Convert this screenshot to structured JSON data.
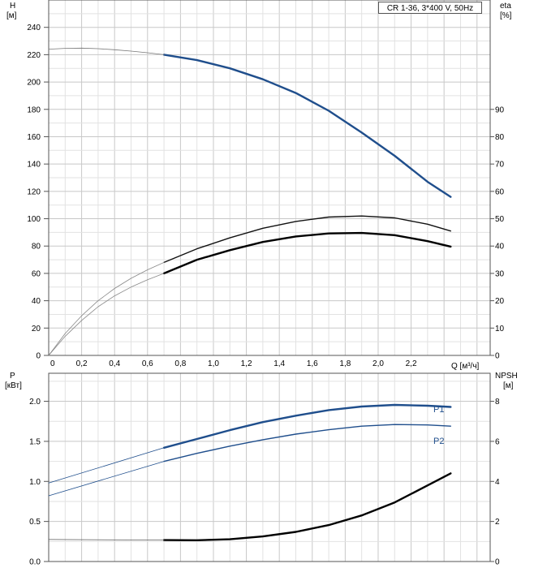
{
  "model_label": "CR 1-36, 3*400 V, 50Hz",
  "chart_data": [
    {
      "type": "line",
      "panel": "head-efficiency",
      "xlabel": "Q [м³/ч]",
      "ylabel_left": [
        "H",
        "[м]"
      ],
      "ylabel_right": [
        "eta",
        "[%]"
      ],
      "xlim": [
        0,
        2.68
      ],
      "x_ticks": [
        0,
        0.2,
        0.4,
        0.6,
        0.8,
        1.0,
        1.2,
        1.4,
        1.6,
        1.8,
        2.0,
        2.2
      ],
      "x_tick_labels": [
        "0",
        "0,2",
        "0,4",
        "0,6",
        "0,8",
        "1,0",
        "1,2",
        "1,4",
        "1,6",
        "1,8",
        "2,0",
        "2,2"
      ],
      "ylim_left": [
        0,
        260
      ],
      "y_ticks_left": [
        0,
        20,
        40,
        60,
        80,
        100,
        120,
        140,
        160,
        180,
        200,
        220,
        240
      ],
      "ylim_right": [
        0,
        130
      ],
      "y_ticks_right": [
        0,
        10,
        20,
        30,
        40,
        50,
        60,
        70,
        80,
        90
      ],
      "grid": true,
      "series": [
        {
          "id": "head",
          "color": "#1f4e8c",
          "axis": "left",
          "style": "thick",
          "x": [
            0.7,
            0.9,
            1.1,
            1.3,
            1.5,
            1.7,
            1.9,
            2.1,
            2.3,
            2.44
          ],
          "y": [
            220,
            216,
            210,
            202,
            192,
            179,
            163,
            146,
            127,
            116
          ]
        },
        {
          "id": "head-extension",
          "color": "#777777",
          "axis": "left",
          "style": "thin",
          "x": [
            0,
            0.1,
            0.2,
            0.3,
            0.4,
            0.5,
            0.6,
            0.7
          ],
          "y": [
            224,
            224.6,
            224.8,
            224.4,
            223.6,
            222.6,
            221.4,
            220
          ]
        },
        {
          "id": "eta-upper",
          "color": "#111111",
          "axis": "right",
          "style": "medium",
          "x": [
            0.7,
            0.9,
            1.1,
            1.3,
            1.5,
            1.7,
            1.9,
            2.1,
            2.3,
            2.44
          ],
          "y": [
            34,
            39,
            43,
            46.5,
            49,
            50.6,
            51,
            50.3,
            48,
            45.5
          ]
        },
        {
          "id": "eta-upper-extension",
          "color": "#888888",
          "axis": "right",
          "style": "thin",
          "x": [
            0,
            0.1,
            0.2,
            0.3,
            0.4,
            0.5,
            0.6,
            0.7
          ],
          "y": [
            0,
            8,
            14.5,
            20,
            24.5,
            28.2,
            31.3,
            34
          ]
        },
        {
          "id": "eta-lower",
          "color": "#000000",
          "axis": "right",
          "style": "thick",
          "x": [
            0.7,
            0.9,
            1.1,
            1.3,
            1.5,
            1.7,
            1.9,
            2.1,
            2.3,
            2.44
          ],
          "y": [
            30,
            35,
            38.5,
            41.5,
            43.5,
            44.6,
            44.8,
            44,
            41.8,
            39.8
          ]
        },
        {
          "id": "eta-lower-extension",
          "color": "#888888",
          "axis": "right",
          "style": "thin",
          "x": [
            0,
            0.1,
            0.2,
            0.3,
            0.4,
            0.5,
            0.6,
            0.7
          ],
          "y": [
            0,
            7,
            12.8,
            17.8,
            21.8,
            25,
            27.7,
            30
          ]
        }
      ]
    },
    {
      "type": "line",
      "panel": "power-npsh",
      "ylabel_left": [
        "P",
        "[кВт]"
      ],
      "ylabel_right": [
        "NPSH",
        "[м]"
      ],
      "xlim": [
        0,
        2.68
      ],
      "x_ticks": [
        0,
        0.2,
        0.4,
        0.6,
        0.8,
        1.0,
        1.2,
        1.4,
        1.6,
        1.8,
        2.0,
        2.2
      ],
      "ylim_left": [
        0,
        2.35
      ],
      "y_ticks_left": [
        0,
        0.5,
        1.0,
        1.5,
        2.0
      ],
      "y_tick_labels_left": [
        "0.0",
        "0.5",
        "1.0",
        "1.5",
        "2.0"
      ],
      "ylim_right": [
        0,
        9.4
      ],
      "y_ticks_right": [
        0,
        2,
        4,
        6,
        8
      ],
      "grid": true,
      "series": [
        {
          "id": "P1",
          "name": "P1",
          "color": "#1f4e8c",
          "axis": "left",
          "style": "thick",
          "x": [
            0.7,
            0.9,
            1.1,
            1.3,
            1.5,
            1.7,
            1.9,
            2.1,
            2.3,
            2.44
          ],
          "y": [
            1.42,
            1.53,
            1.64,
            1.74,
            1.82,
            1.89,
            1.935,
            1.955,
            1.945,
            1.93
          ]
        },
        {
          "id": "P1-extension",
          "color": "#1f4e8c",
          "axis": "left",
          "style": "thin",
          "x": [
            0,
            0.7
          ],
          "y": [
            0.98,
            1.42
          ]
        },
        {
          "id": "P2",
          "name": "P2",
          "color": "#1f4e8c",
          "axis": "left",
          "style": "medium",
          "x": [
            0.7,
            0.9,
            1.1,
            1.3,
            1.5,
            1.7,
            1.9,
            2.1,
            2.3,
            2.44
          ],
          "y": [
            1.25,
            1.35,
            1.44,
            1.52,
            1.59,
            1.645,
            1.69,
            1.71,
            1.705,
            1.69
          ]
        },
        {
          "id": "P2-extension",
          "color": "#1f4e8c",
          "axis": "left",
          "style": "thin",
          "x": [
            0,
            0.7
          ],
          "y": [
            0.82,
            1.25
          ]
        },
        {
          "id": "npsh",
          "color": "#000000",
          "axis": "right",
          "style": "thick",
          "x": [
            0.7,
            0.9,
            1.1,
            1.3,
            1.5,
            1.7,
            1.9,
            2.1,
            2.3,
            2.44
          ],
          "y": [
            1.07,
            1.06,
            1.11,
            1.25,
            1.48,
            1.82,
            2.3,
            2.95,
            3.8,
            4.4
          ]
        },
        {
          "id": "npsh-extension",
          "color": "#555555",
          "axis": "right",
          "style": "thin",
          "x": [
            0,
            0.7
          ],
          "y": [
            1.1,
            1.07
          ]
        }
      ]
    }
  ]
}
